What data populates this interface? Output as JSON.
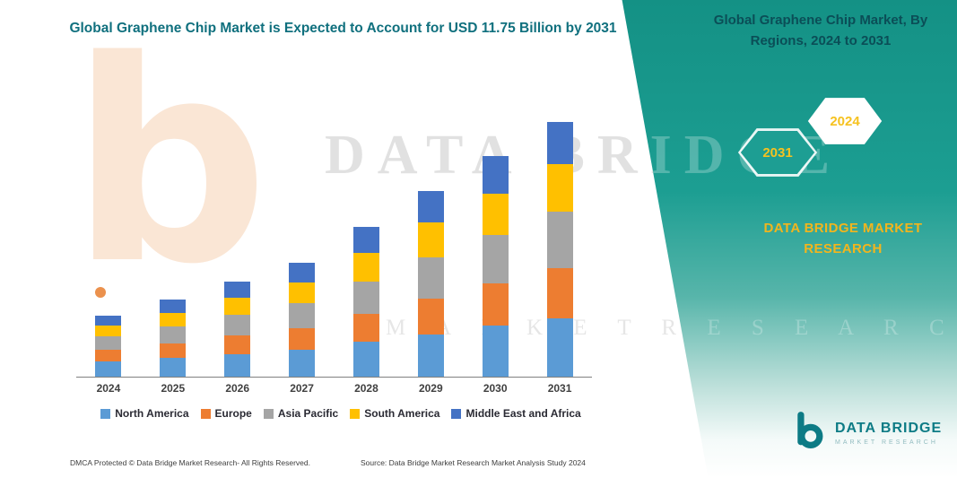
{
  "title": "Global Graphene Chip Market is Expected to Account for USD 11.75 Billion by 2031",
  "banner": {
    "heading": "Global Graphene Chip Market, By Regions, 2024 to 2031",
    "hex_left": "2031",
    "hex_right": "2024",
    "brand": "DATA BRIDGE MARKET RESEARCH"
  },
  "watermark": {
    "line1": "DATA BRIDGE",
    "line2": "M A R K E T    R E S E A R C H",
    "logo_glyph": "b"
  },
  "logo": {
    "name": "DATA BRIDGE",
    "sub": "MARKET RESEARCH"
  },
  "footer": {
    "dmca": "DMCA Protected © Data Bridge Market Research-  All Rights Reserved.",
    "source": "Source: Data Bridge Market Research  Market Analysis Study 2024"
  },
  "chart_data": {
    "type": "bar",
    "stacked": true,
    "title": "Global Graphene Chip Market is Expected to Account for USD 11.75 Billion by 2031",
    "unit": "USD Billion",
    "categories": [
      "2024",
      "2025",
      "2026",
      "2027",
      "2028",
      "2029",
      "2030",
      "2031"
    ],
    "series": [
      {
        "name": "North America",
        "color": "#5B9BD5",
        "values": [
          0.7,
          0.85,
          1.05,
          1.25,
          1.6,
          1.95,
          2.35,
          2.7
        ]
      },
      {
        "name": "Europe",
        "color": "#ED7D31",
        "values": [
          0.55,
          0.7,
          0.85,
          1.0,
          1.3,
          1.65,
          1.95,
          2.3
        ]
      },
      {
        "name": "Asia Pacific",
        "color": "#A5A5A5",
        "values": [
          0.6,
          0.75,
          0.95,
          1.15,
          1.5,
          1.9,
          2.25,
          2.6
        ]
      },
      {
        "name": "South America",
        "color": "#FFC000",
        "values": [
          0.5,
          0.65,
          0.8,
          0.95,
          1.3,
          1.6,
          1.9,
          2.2
        ]
      },
      {
        "name": "Middle East and Africa",
        "color": "#4472C4",
        "values": [
          0.45,
          0.6,
          0.75,
          0.9,
          1.2,
          1.45,
          1.7,
          1.95
        ]
      }
    ],
    "totals": [
      2.8,
      3.55,
      4.4,
      5.25,
      6.9,
      8.55,
      10.15,
      11.75
    ],
    "ylim": [
      0,
      12
    ],
    "grid": false,
    "legend_position": "bottom"
  }
}
